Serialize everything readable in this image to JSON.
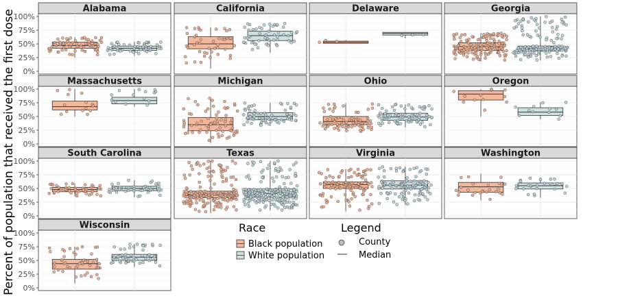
{
  "chart_data": {
    "type": "boxplot-jitter",
    "ylabel": "Percent of population that received the first dose",
    "yticks": [
      "0%",
      "25%",
      "50%",
      "75%",
      "100%"
    ],
    "ylim": [
      0,
      100
    ],
    "groups": [
      "Black population",
      "White population"
    ],
    "colors": {
      "black_fill": "#f4b89c",
      "black_point": "#f0a888",
      "white_fill": "#cfe0e3",
      "white_point": "#b9d3d8",
      "strip_bg": "#d9d9d9",
      "box_line": "#333333"
    },
    "facets": [
      {
        "name": "Alabama",
        "black": {
          "q1": 42,
          "median": 47,
          "q3": 53,
          "lo": 25,
          "hi": 62,
          "n": 70
        },
        "white": {
          "q1": 38,
          "median": 42,
          "q3": 46,
          "lo": 28,
          "hi": 54,
          "n": 55
        }
      },
      {
        "name": "California",
        "black": {
          "q1": 41,
          "median": 50,
          "q3": 63,
          "lo": 5,
          "hi": 80,
          "n": 45
        },
        "white": {
          "q1": 56,
          "median": 65,
          "q3": 73,
          "lo": 34,
          "hi": 88,
          "n": 55
        }
      },
      {
        "name": "Delaware",
        "black": {
          "q1": 51,
          "median": 53,
          "q3": 55,
          "lo": 51,
          "hi": 57,
          "n": 3
        },
        "white": {
          "q1": 66,
          "median": 69,
          "q3": 71,
          "lo": 60,
          "hi": 71,
          "n": 3
        }
      },
      {
        "name": "Georgia",
        "black": {
          "q1": 38,
          "median": 45,
          "q3": 52,
          "lo": 18,
          "hi": 70,
          "n": 150
        },
        "white": {
          "q1": 37,
          "median": 41,
          "q3": 46,
          "lo": 20,
          "hi": 100,
          "n": 150
        }
      },
      {
        "name": "Massachusetts",
        "black": {
          "q1": 62,
          "median": 68,
          "q3": 78,
          "lo": 50,
          "hi": 100,
          "n": 14
        },
        "white": {
          "q1": 73,
          "median": 79,
          "q3": 85,
          "lo": 68,
          "hi": 100,
          "n": 14
        }
      },
      {
        "name": "Michigan",
        "black": {
          "q1": 24,
          "median": 35,
          "q3": 48,
          "lo": 2,
          "hi": 85,
          "n": 70
        },
        "white": {
          "q1": 44,
          "median": 50,
          "q3": 57,
          "lo": 33,
          "hi": 75,
          "n": 70
        }
      },
      {
        "name": "Ohio",
        "black": {
          "q1": 35,
          "median": 41,
          "q3": 50,
          "lo": 22,
          "hi": 74,
          "n": 80
        },
        "white": {
          "q1": 43,
          "median": 49,
          "q3": 56,
          "lo": 30,
          "hi": 72,
          "n": 85
        }
      },
      {
        "name": "Oregon",
        "black": {
          "q1": 80,
          "median": 91,
          "q3": 97,
          "lo": 50,
          "hi": 100,
          "n": 12
        },
        "white": {
          "q1": 52,
          "median": 58,
          "q3": 66,
          "lo": 45,
          "hi": 76,
          "n": 12
        }
      },
      {
        "name": "South Carolina",
        "black": {
          "q1": 44,
          "median": 48,
          "q3": 52,
          "lo": 36,
          "hi": 59,
          "n": 45
        },
        "white": {
          "q1": 46,
          "median": 50,
          "q3": 54,
          "lo": 34,
          "hi": 65,
          "n": 45
        }
      },
      {
        "name": "Texas",
        "black": {
          "q1": 33,
          "median": 38,
          "q3": 45,
          "lo": 5,
          "hi": 100,
          "n": 200
        },
        "white": {
          "q1": 34,
          "median": 41,
          "q3": 49,
          "lo": 10,
          "hi": 100,
          "n": 230
        }
      },
      {
        "name": "Virginia",
        "black": {
          "q1": 50,
          "median": 57,
          "q3": 62,
          "lo": 8,
          "hi": 85,
          "n": 120
        },
        "white": {
          "q1": 49,
          "median": 56,
          "q3": 64,
          "lo": 20,
          "hi": 90,
          "n": 120
        }
      },
      {
        "name": "Washington",
        "black": {
          "q1": 43,
          "median": 53,
          "q3": 61,
          "lo": 28,
          "hi": 77,
          "n": 25
        },
        "white": {
          "q1": 49,
          "median": 55,
          "q3": 60,
          "lo": 33,
          "hi": 70,
          "n": 25
        }
      },
      {
        "name": "Wisconsin",
        "black": {
          "q1": 34,
          "median": 44,
          "q3": 52,
          "lo": 8,
          "hi": 75,
          "n": 50
        },
        "white": {
          "q1": 50,
          "median": 56,
          "q3": 61,
          "lo": 38,
          "hi": 80,
          "n": 55
        }
      }
    ],
    "legend": {
      "race_title": "Race",
      "race_items": [
        "Black population",
        "White population"
      ],
      "legend_title": "Legend",
      "legend_items": [
        "County",
        "Median"
      ]
    }
  }
}
